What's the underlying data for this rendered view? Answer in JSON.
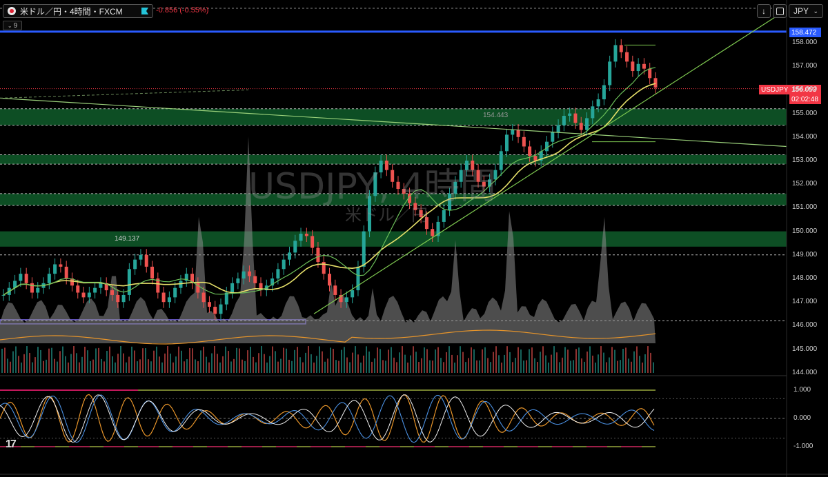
{
  "header": {
    "symbol_title": "米ドル／円・4時間・FXCM",
    "change_text": "-0.856 (-0.55%)",
    "indicator_count": "9",
    "currency_button": "JPY",
    "download_icon": "arrow-down-icon",
    "fullscreen_icon": "fullscreen-icon"
  },
  "watermark": {
    "symbol": "USDJPY, 4時間",
    "name": "米ドル／円"
  },
  "annotations": {
    "low_label": "149.137",
    "mid_label": "154.443"
  },
  "price_labels": {
    "resistance_label": "158.472",
    "current_symbol": "USDJPY",
    "current_price": "156.053",
    "countdown": "02:02:48"
  },
  "price_axis": [
    "158.000",
    "157.000",
    "156.000",
    "155.000",
    "154.000",
    "153.000",
    "152.000",
    "151.000",
    "150.000",
    "149.000",
    "148.000",
    "147.000",
    "146.000",
    "145.000",
    "144.000"
  ],
  "oscillator_axis": [
    "1.000",
    "0.000",
    "-1.000"
  ],
  "colors": {
    "background": "#000000",
    "up_candle": "#26a69a",
    "down_candle": "#ef5350",
    "zone_fill": "#0f5c2a",
    "trendline": "#7ec850",
    "ma_yellow": "#e6e06a",
    "resistance_blue": "#2a5bff",
    "current_price": "#f23645"
  },
  "chart_data": {
    "type": "candlestick",
    "symbol": "USDJPY",
    "timeframe": "4時間",
    "ylim": [
      143.6,
      158.8
    ],
    "price_series": [
      147.3,
      147.6,
      147.9,
      148.2,
      147.8,
      147.4,
      147.6,
      147.8,
      148.2,
      148.6,
      148.5,
      148.0,
      147.7,
      147.4,
      147.2,
      147.4,
      147.6,
      147.8,
      147.5,
      147.3,
      147.0,
      147.3,
      148.4,
      148.8,
      149.0,
      148.5,
      148.0,
      147.4,
      147.0,
      147.2,
      147.6,
      147.9,
      148.2,
      147.8,
      147.4,
      147.0,
      146.8,
      146.5,
      146.9,
      147.4,
      147.8,
      148.0,
      148.3,
      148.1,
      147.8,
      147.5,
      147.7,
      148.0,
      148.4,
      148.8,
      149.1,
      149.6,
      149.9,
      149.8,
      149.3,
      148.7,
      148.2,
      147.7,
      147.3,
      147.0,
      147.2,
      147.5,
      148.5,
      150.0,
      151.5,
      152.5,
      153.0,
      152.6,
      152.1,
      151.8,
      151.6,
      151.2,
      150.9,
      150.6,
      150.1,
      149.8,
      150.4,
      150.9,
      151.6,
      152.1,
      152.6,
      153.0,
      152.6,
      152.1,
      151.9,
      152.2,
      152.6,
      153.4,
      154.1,
      154.3,
      154.0,
      153.6,
      153.2,
      153.0,
      153.4,
      153.8,
      154.2,
      154.5,
      154.9,
      155.0,
      154.6,
      154.3,
      154.8,
      155.3,
      155.6,
      156.2,
      157.2,
      157.9,
      157.6,
      157.2,
      156.8,
      157.1,
      156.9,
      156.5,
      156.1
    ],
    "current_price": 156.053,
    "change": -0.856,
    "change_percent": -0.55,
    "resistance_level": 158.472,
    "support_zones": [
      [
        154.5,
        155.2
      ],
      [
        152.85,
        153.25
      ],
      [
        151.1,
        151.6
      ],
      [
        149.35,
        150.0
      ]
    ],
    "dashed_levels": [
      158.472,
      155.2,
      154.5,
      153.25,
      152.85,
      151.6,
      151.1,
      149.0,
      146.2
    ],
    "oscillator_range": [
      -1.0,
      1.0
    ]
  }
}
